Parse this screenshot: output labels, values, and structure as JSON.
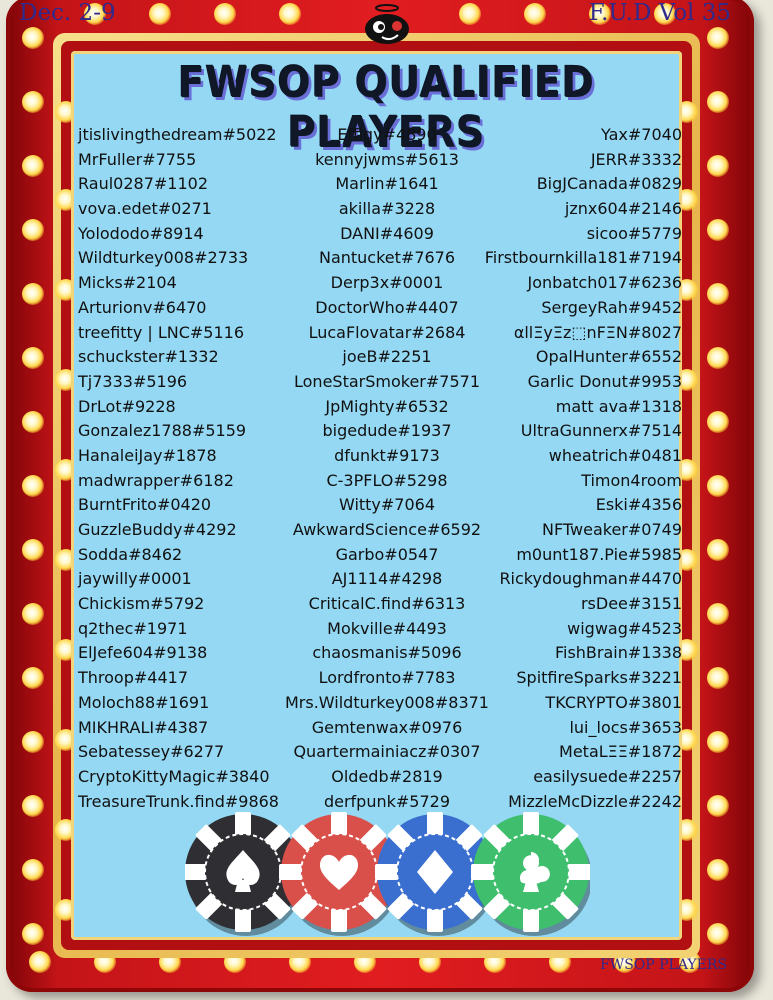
{
  "header": {
    "date": "Dec. 2-9",
    "volume": "F.U.D Vol 35"
  },
  "title": "FWSOP QUALIFIED PLAYERS",
  "footer": "FWSOP PLAYERS",
  "columns": {
    "left": [
      "jtislivingthedream#5022",
      "MrFuller#7755",
      "Raul0287#1102",
      "vova.edet#0271",
      "Yolododo#8914",
      "Wildturkey008#2733",
      "Micks#2104",
      "Arturionv#6470",
      "treefitty | LNC#5116",
      "schuckster#1332",
      "Tj7333#5196",
      "DrLot#9228",
      "Gonzalez1788#5159",
      "HanaleiJay#1878",
      "madwrapper#6182",
      "BurntFrito#0420",
      "GuzzleBuddy#4292",
      "Sodda#8462",
      "jaywilly#0001",
      "Chickism#5792",
      "q2thec#1971",
      "ElJefe604#9138",
      "Throop#4417",
      "Moloch88#1691",
      "MIKHRALI#4387",
      "Sebatessey#6277",
      "CryptoKittyMagic#3840",
      "TreasureTrunk.find#9868"
    ],
    "middle": [
      "Effigy#4890",
      "kennyjwms#5613",
      "Marlin#1641",
      "akilla#3228",
      "DANI#4609",
      "Nantucket#7676",
      "Derp3x#0001",
      "DoctorWho#4407",
      "LucaFlovatar#2684",
      "joeB#2251",
      "LoneStarSmoker#7571",
      "JpMighty#6532",
      "bigedude#1937",
      "dfunkt#9173",
      "C-3PFLO#5298",
      "Witty#7064",
      "AwkwardScience#6592",
      "Garbo#0547",
      "AJ1114#4298",
      "CriticalC.find#6313",
      "Mokville#4493",
      "chaosmanis#5096",
      "Lordfronto#7783",
      "Mrs.Wildturkey008#8371",
      "Gemtenwax#0976",
      "Quartermainiacz#0307",
      "Oldedb#2819",
      "derfpunk#5729"
    ],
    "right": [
      "Yax#7040",
      "JERR#3332",
      "BigJCanada#0829",
      "jznx604#2146",
      "sicoo#5779",
      "Firstbournkilla181#7194",
      "Jonbatch017#6236",
      "SergeyRah#9452",
      "αllΞyΞz⬚nFΞN#8027",
      "OpalHunter#6552",
      "Garlic Donut#9953",
      "matt ava#1318",
      "UltraGunnerx#7514",
      "wheatrich#0481",
      "Timon4room",
      "Eski#4356",
      "NFTweaker#0749",
      "m0unt187.Pie#5985",
      "Rickydoughman#4470",
      "rsDee#3151",
      "wigwag#4523",
      "FishBrain#1338",
      "SpitfireSparks#3221",
      "TKCRYPTO#3801",
      "lui_locs#3653",
      "MetaLΞΞ#1872",
      "easilysuede#2257",
      "MizzleMcDizzle#2242"
    ]
  },
  "chips": [
    {
      "suit": "spade",
      "color": "#2f2f33"
    },
    {
      "suit": "heart",
      "color": "#d9504b"
    },
    {
      "suit": "diamond",
      "color": "#3b6fcf"
    },
    {
      "suit": "club",
      "color": "#3fbf6e"
    }
  ],
  "colors": {
    "panel": "#94d8f3",
    "frame": "#e11d20",
    "gold": "#e7b54a",
    "label": "#2f2a8c"
  }
}
